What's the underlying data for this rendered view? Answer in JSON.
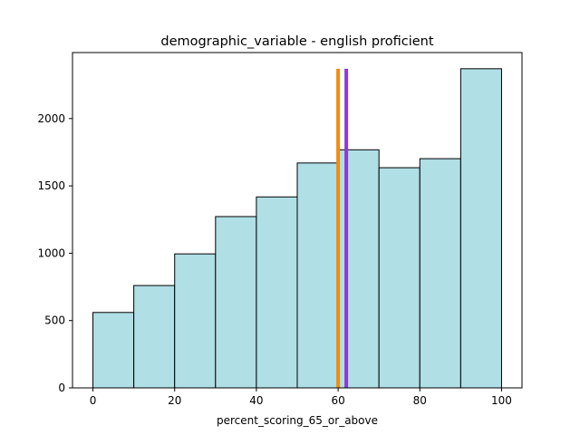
{
  "chart_data": {
    "type": "bar",
    "title": "demographic_variable - english proficient",
    "xlabel": "percent_scoring_65_or_above",
    "ylabel": "",
    "bins": [
      {
        "x0": 0,
        "x1": 10,
        "count": 560
      },
      {
        "x0": 10,
        "x1": 20,
        "count": 760
      },
      {
        "x0": 20,
        "x1": 30,
        "count": 995
      },
      {
        "x0": 30,
        "x1": 40,
        "count": 1272
      },
      {
        "x0": 40,
        "x1": 50,
        "count": 1418
      },
      {
        "x0": 50,
        "x1": 60,
        "count": 1670
      },
      {
        "x0": 60,
        "x1": 70,
        "count": 1768
      },
      {
        "x0": 70,
        "x1": 80,
        "count": 1635
      },
      {
        "x0": 80,
        "x1": 90,
        "count": 1702
      },
      {
        "x0": 90,
        "x1": 100,
        "count": 2370
      }
    ],
    "vlines": [
      {
        "x": 60.0,
        "color": "#f28c0f"
      },
      {
        "x": 62.0,
        "color": "#8e3bd1"
      }
    ],
    "xlim": [
      -5,
      105
    ],
    "ylim": [
      0,
      2490
    ],
    "xticks": [
      0,
      20,
      40,
      60,
      80,
      100
    ],
    "yticks": [
      0,
      500,
      1000,
      1500,
      2000
    ],
    "bar_color": "#b0dfe6",
    "edge_color": "#000000",
    "grid": false
  }
}
